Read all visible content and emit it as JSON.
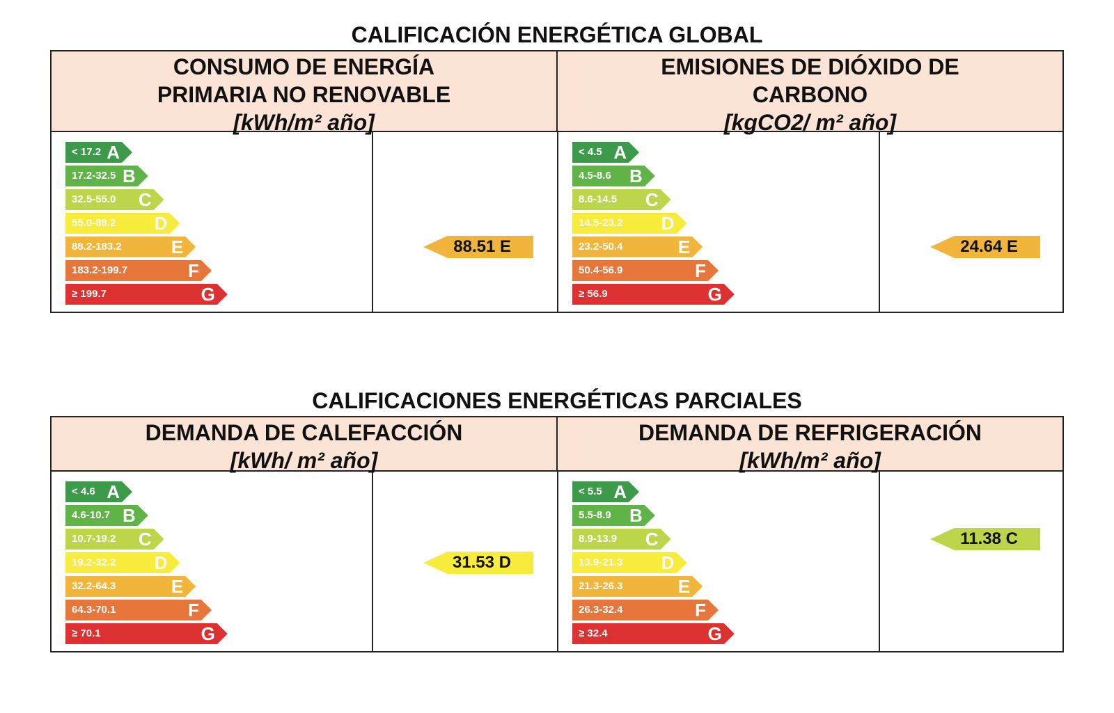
{
  "global": {
    "title": "CALIFICACIÓN ENERGÉTICA GLOBAL",
    "panels": [
      {
        "heading_lines": [
          "CONSUMO DE ENERGÍA",
          "PRIMARIA NO RENOVABLE"
        ],
        "unit": "[kWh/m² año]",
        "scale": [
          {
            "range": "< 17.2",
            "letter": "A"
          },
          {
            "range": "17.2-32.5",
            "letter": "B"
          },
          {
            "range": "32.5-55.0",
            "letter": "C"
          },
          {
            "range": "55.0-88.2",
            "letter": "D"
          },
          {
            "range": "88.2-183.2",
            "letter": "E"
          },
          {
            "range": "183.2-199.7",
            "letter": "F"
          },
          {
            "range": "≥ 199.7",
            "letter": "G"
          }
        ],
        "result": {
          "value": "88.51",
          "letter": "E",
          "label": "88.51 E"
        }
      },
      {
        "heading_lines": [
          "EMISIONES DE DIÓXIDO DE",
          "CARBONO"
        ],
        "unit": "[kgCO2/ m² año]",
        "scale": [
          {
            "range": "< 4.5",
            "letter": "A"
          },
          {
            "range": "4.5-8.6",
            "letter": "B"
          },
          {
            "range": "8.6-14.5",
            "letter": "C"
          },
          {
            "range": "14.5-23.2",
            "letter": "D"
          },
          {
            "range": "23.2-50.4",
            "letter": "E"
          },
          {
            "range": "50.4-56.9",
            "letter": "F"
          },
          {
            "range": "≥ 56.9",
            "letter": "G"
          }
        ],
        "result": {
          "value": "24.64",
          "letter": "E",
          "label": "24.64 E"
        }
      }
    ]
  },
  "partial": {
    "title": "CALIFICACIONES ENERGÉTICAS PARCIALES",
    "panels": [
      {
        "heading_lines": [
          "DEMANDA DE CALEFACCIÓN"
        ],
        "unit": "[kWh/ m² año]",
        "scale": [
          {
            "range": "< 4.6",
            "letter": "A"
          },
          {
            "range": "4.6-10.7",
            "letter": "B"
          },
          {
            "range": "10.7-19.2",
            "letter": "C"
          },
          {
            "range": "19.2-32.2",
            "letter": "D"
          },
          {
            "range": "32.2-64.3",
            "letter": "E"
          },
          {
            "range": "64.3-70.1",
            "letter": "F"
          },
          {
            "range": "≥ 70.1",
            "letter": "G"
          }
        ],
        "result": {
          "value": "31.53",
          "letter": "D",
          "label": "31.53 D"
        }
      },
      {
        "heading_lines": [
          "DEMANDA DE REFRIGERACIÓN"
        ],
        "unit": "[kWh/m² año]",
        "scale": [
          {
            "range": "< 5.5",
            "letter": "A"
          },
          {
            "range": "5.5-8.9",
            "letter": "B"
          },
          {
            "range": "8.9-13.9",
            "letter": "C"
          },
          {
            "range": "13.9-21.3",
            "letter": "D"
          },
          {
            "range": "21.3-26.3",
            "letter": "E"
          },
          {
            "range": "26.3-32.4",
            "letter": "F"
          },
          {
            "range": "≥ 32.4",
            "letter": "G"
          }
        ],
        "result": {
          "value": "11.38",
          "letter": "C",
          "label": "11.38 C"
        }
      }
    ]
  },
  "colors": {
    "A": "#3d9a4a",
    "B": "#5fb347",
    "C": "#bdd54a",
    "D": "#f7ec3c",
    "E": "#f1b53b",
    "F": "#e7763a",
    "G": "#dc3130",
    "header_bg": "#fbe4d5"
  }
}
